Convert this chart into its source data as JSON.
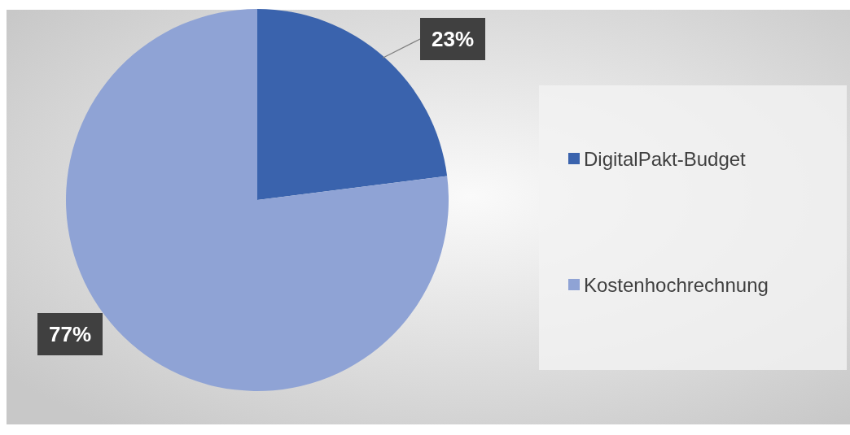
{
  "chart_data": {
    "type": "pie",
    "categories": [
      "DigitalPakt-Budget",
      "Kostenhochrechnung"
    ],
    "values": [
      23,
      77
    ],
    "colors": [
      "#3a63ad",
      "#8fa3d5"
    ],
    "value_labels": [
      "23%",
      "77%"
    ],
    "legend": "right"
  }
}
